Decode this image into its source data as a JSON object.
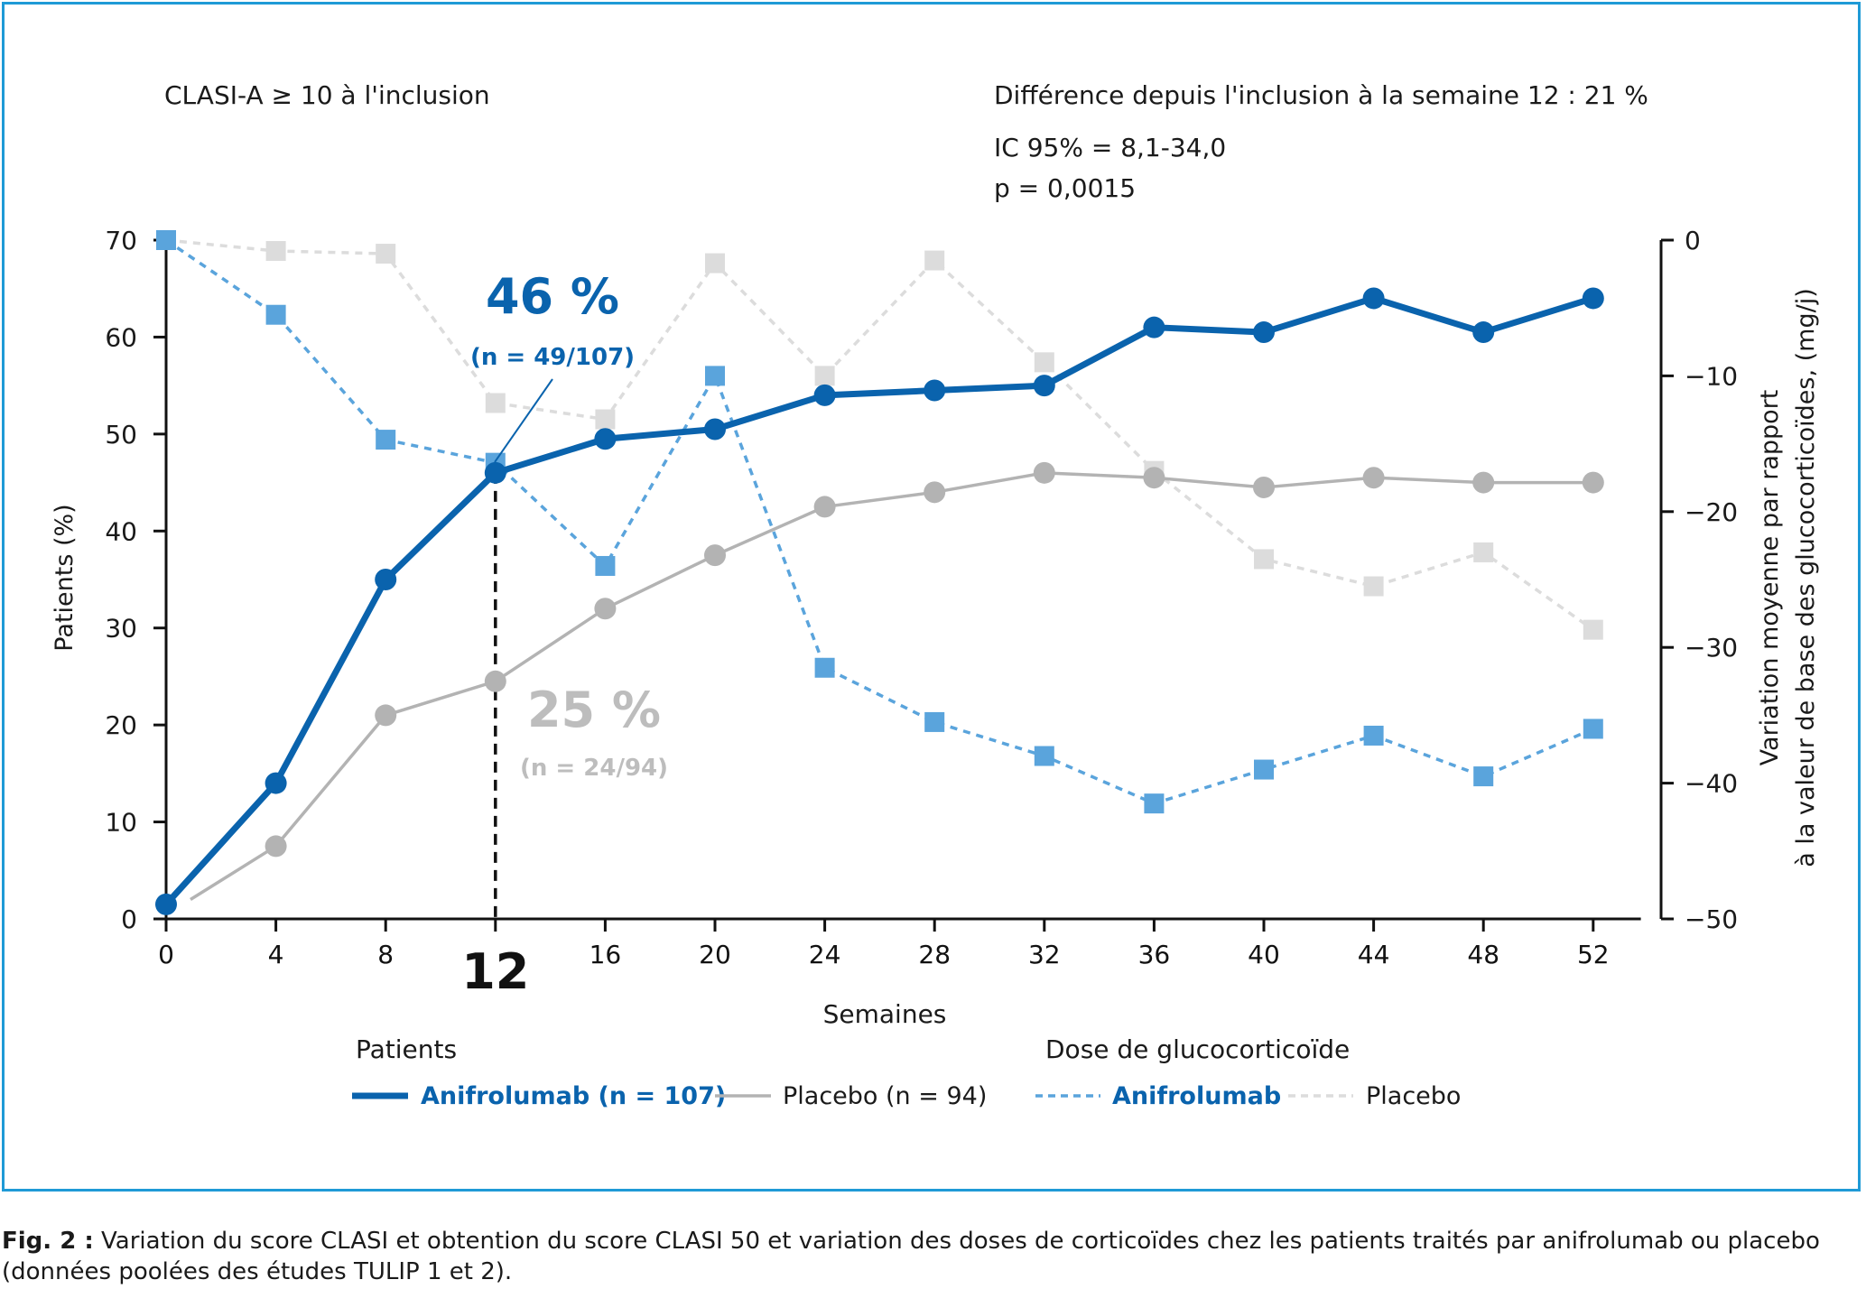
{
  "header": {
    "subgroup": "CLASI-A ≥ 10 à l'inclusion",
    "difference": "Différence depuis l'inclusion à la semaine 12 : 21 %",
    "ci": "IC 95% = 8,1-34,0",
    "pvalue": "p = 0,0015"
  },
  "annotations": {
    "anifrolumab_pct": "46 %",
    "anifrolumab_n": "(n = 49/107)",
    "placebo_pct": "25 %",
    "placebo_n": "(n = 24/94)"
  },
  "legend": {
    "group1_title": "Patients",
    "group2_title": "Dose de glucocorticoïde",
    "items": [
      "Anifrolumab (n = 107)",
      "Placebo (n = 94)",
      "Anifrolumab",
      "Placebo"
    ]
  },
  "colors": {
    "anifrolumab_line": "#0a63ad",
    "placebo_line": "#b3b3b3",
    "anifrolumab_dose": "#5aa4dc",
    "placebo_dose": "#dcdcdc",
    "frame": "#1f9ad6"
  },
  "caption": {
    "label": "Fig. 2 :",
    "text": "Variation du score CLASI et obtention du score CLASI 50 et variation des doses de corticoïdes chez les patients traités par anifrolumab ou placebo (données poolées des études TULIP 1 et 2)."
  },
  "chart_data": {
    "type": "line",
    "xlabel": "Semaines",
    "ylabel": "Patients (%)",
    "y2label": "Variation moyenne par rapport à la valeur de base des glucocorticoïdes, (mg/j)",
    "y2label_lines": [
      "Variation moyenne par rapport",
      "à la valeur de base des glucocorticoïdes, (mg/j)"
    ],
    "xlim": [
      0,
      54
    ],
    "ylim": [
      0,
      70
    ],
    "y2lim": [
      -50,
      0
    ],
    "xticks": [
      0,
      4,
      8,
      12,
      16,
      20,
      24,
      28,
      32,
      36,
      40,
      44,
      48,
      52
    ],
    "yticks": [
      0,
      10,
      20,
      30,
      40,
      50,
      60,
      70
    ],
    "y2ticks": [
      0,
      -10,
      -20,
      -30,
      -40,
      -50
    ],
    "highlight_x": 12,
    "series": [
      {
        "name": "Anifrolumab (n = 107)",
        "axis": "left",
        "style": "solid-thick",
        "marker": "circle",
        "points": [
          [
            0,
            1.5
          ],
          [
            4,
            14
          ],
          [
            8,
            35
          ],
          [
            12,
            46
          ],
          [
            16,
            49.5
          ],
          [
            20,
            50.5
          ],
          [
            24,
            54
          ],
          [
            28,
            54.5
          ],
          [
            32,
            55
          ],
          [
            36,
            61
          ],
          [
            40,
            60.5
          ],
          [
            44,
            64
          ],
          [
            48,
            60.5
          ],
          [
            52,
            64
          ]
        ]
      },
      {
        "name": "Placebo (n = 94)",
        "axis": "left",
        "style": "solid-thin",
        "marker": "circle",
        "points": [
          [
            4,
            7.5
          ],
          [
            8,
            21
          ],
          [
            12,
            24.5
          ],
          [
            16,
            32
          ],
          [
            20,
            37.5
          ],
          [
            24,
            42.5
          ],
          [
            28,
            44
          ],
          [
            32,
            46
          ],
          [
            36,
            45.5
          ],
          [
            40,
            44.5
          ],
          [
            44,
            45.5
          ],
          [
            48,
            45
          ],
          [
            52,
            45
          ]
        ]
      },
      {
        "name": "Anifrolumab",
        "axis": "right",
        "style": "dashed",
        "marker": "square",
        "points": [
          [
            0,
            0
          ],
          [
            4,
            -5.5
          ],
          [
            8,
            -14.7
          ],
          [
            12,
            -16.4
          ],
          [
            16,
            -24
          ],
          [
            20,
            -10
          ],
          [
            24,
            -31.5
          ],
          [
            28,
            -35.5
          ],
          [
            32,
            -38
          ],
          [
            36,
            -41.5
          ],
          [
            40,
            -39
          ],
          [
            44,
            -36.5
          ],
          [
            48,
            -39.5
          ],
          [
            52,
            -36
          ]
        ]
      },
      {
        "name": "Placebo",
        "axis": "right",
        "style": "dashed-light",
        "marker": "square",
        "points": [
          [
            0,
            0
          ],
          [
            4,
            -0.8
          ],
          [
            8,
            -1
          ],
          [
            12,
            -12
          ],
          [
            16,
            -13.2
          ],
          [
            20,
            -1.7
          ],
          [
            24,
            -10
          ],
          [
            28,
            -1.5
          ],
          [
            32,
            -9
          ],
          [
            36,
            -17
          ],
          [
            40,
            -23.5
          ],
          [
            44,
            -25.5
          ],
          [
            48,
            -23
          ],
          [
            52,
            -28.7
          ]
        ]
      }
    ]
  }
}
